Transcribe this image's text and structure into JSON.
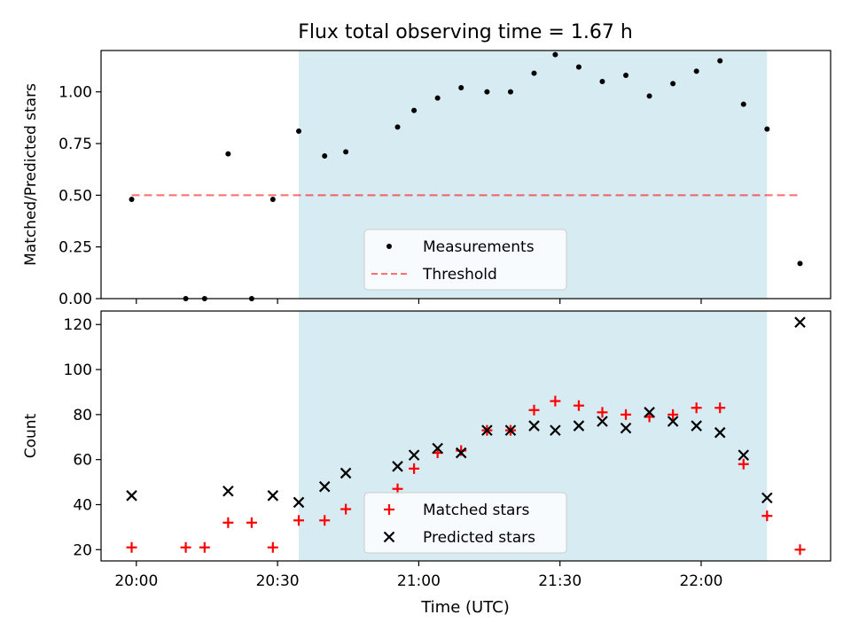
{
  "figure": {
    "title": "Flux total observing time = 1.67 h",
    "xlabel": "Time (UTC)",
    "x_ticks": [
      "20:00",
      "20:30",
      "21:00",
      "21:30",
      "22:00"
    ]
  },
  "colors": {
    "observing_window": "#add8e6",
    "measurements": "#000000",
    "threshold": "#ff0000",
    "matched": "#ff0000",
    "predicted": "#000000"
  },
  "chart_data": [
    {
      "type": "scatter",
      "title": "Flux total observing time = 1.67 h",
      "xlabel": "",
      "ylabel": "Matched/Predicted stars",
      "x_unit": "minutes since 20:00 UTC",
      "xlim": [
        -7.5,
        147.5
      ],
      "ylim": [
        0,
        1.2
      ],
      "y_ticks": [
        "0.00",
        "0.25",
        "0.50",
        "0.75",
        "1.00"
      ],
      "y_tick_values": [
        0,
        0.25,
        0.5,
        0.75,
        1.0
      ],
      "shaded_span": [
        34.5,
        134
      ],
      "legend_position": "lower center",
      "threshold": {
        "name": "Threshold",
        "x": [
          -1,
          141
        ],
        "y": 0.5
      },
      "series": [
        {
          "name": "Measurements",
          "x": [
            -1,
            10.5,
            14.5,
            19.5,
            24.5,
            29,
            34.5,
            40,
            44.5,
            55.5,
            59,
            64,
            69,
            74.5,
            79.5,
            84.5,
            89,
            94,
            99,
            104,
            109,
            114,
            119,
            124,
            129,
            134,
            141
          ],
          "y": [
            0.48,
            0.0,
            0.0,
            0.7,
            0.0,
            0.48,
            0.81,
            0.69,
            0.71,
            0.83,
            0.91,
            0.97,
            1.02,
            1.0,
            1.0,
            1.09,
            1.18,
            1.12,
            1.05,
            1.08,
            0.98,
            1.04,
            1.1,
            1.15,
            0.94,
            0.82,
            0.17
          ]
        }
      ]
    },
    {
      "type": "scatter",
      "xlabel": "Time (UTC)",
      "ylabel": "Count",
      "x_unit": "minutes since 20:00 UTC",
      "xlim": [
        -7.5,
        147.5
      ],
      "ylim": [
        15,
        126
      ],
      "y_ticks": [
        "20",
        "40",
        "60",
        "80",
        "100",
        "120"
      ],
      "y_tick_values": [
        20,
        40,
        60,
        80,
        100,
        120
      ],
      "x_ticks": [
        "20:00",
        "20:30",
        "21:00",
        "21:30",
        "22:00"
      ],
      "x_tick_values": [
        0,
        30,
        60,
        90,
        120
      ],
      "shaded_span": [
        34.5,
        134
      ],
      "legend_position": "lower center",
      "series": [
        {
          "name": "Matched stars",
          "marker": "+",
          "x": [
            -1,
            10.5,
            14.5,
            19.5,
            24.5,
            29,
            34.5,
            40,
            44.5,
            55.5,
            59,
            64,
            69,
            74.5,
            79.5,
            84.5,
            89,
            94,
            99,
            104,
            109,
            114,
            119,
            124,
            129,
            134,
            141
          ],
          "y": [
            21,
            21,
            21,
            32,
            32,
            21,
            33,
            33,
            38,
            47,
            56,
            63,
            64,
            73,
            73,
            82,
            86,
            84,
            81,
            80,
            79,
            80,
            83,
            83,
            58,
            35,
            20
          ]
        },
        {
          "name": "Predicted stars",
          "marker": "x",
          "x": [
            -1,
            19.5,
            29,
            34.5,
            40,
            44.5,
            55.5,
            59,
            64,
            69,
            74.5,
            79.5,
            84.5,
            89,
            94,
            99,
            104,
            109,
            114,
            119,
            124,
            129,
            134,
            141
          ],
          "y": [
            44,
            46,
            44,
            41,
            48,
            54,
            57,
            62,
            65,
            63,
            73,
            73,
            75,
            73,
            75,
            77,
            74,
            81,
            77,
            75,
            72,
            62,
            43,
            121
          ]
        }
      ]
    }
  ]
}
